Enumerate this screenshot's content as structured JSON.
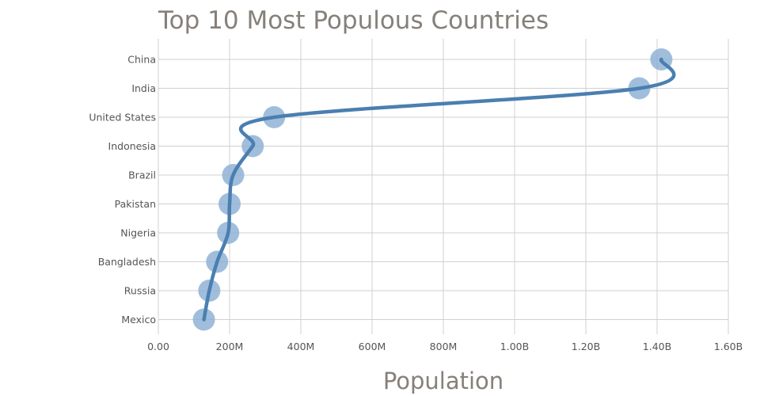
{
  "chart_data": {
    "type": "scatter",
    "title": "Top 10 Most Populous Countries",
    "xlabel": "Population",
    "ylabel": "",
    "xlim": [
      0,
      1600000000
    ],
    "x_ticks": [
      {
        "value": 0,
        "label": "0.00"
      },
      {
        "value": 200000000,
        "label": "200M"
      },
      {
        "value": 400000000,
        "label": "400M"
      },
      {
        "value": 600000000,
        "label": "600M"
      },
      {
        "value": 800000000,
        "label": "800M"
      },
      {
        "value": 1000000000,
        "label": "1.00B"
      },
      {
        "value": 1200000000,
        "label": "1.20B"
      },
      {
        "value": 1400000000,
        "label": "1.40B"
      },
      {
        "value": 1600000000,
        "label": "1.60B"
      }
    ],
    "categories": [
      "China",
      "India",
      "United States",
      "Indonesia",
      "Brazil",
      "Pakistan",
      "Nigeria",
      "Bangladesh",
      "Russia",
      "Mexico"
    ],
    "values": [
      1412000000,
      1350000000,
      325000000,
      265000000,
      210000000,
      200000000,
      196000000,
      165000000,
      143000000,
      128000000
    ],
    "grid": true,
    "line_smoothing": "spline",
    "colors": {
      "line": "#4a7fb0",
      "marker": "#8fb3d6",
      "grid": "#d0d0d0",
      "title": "#86807a",
      "tick": "#555555"
    }
  }
}
